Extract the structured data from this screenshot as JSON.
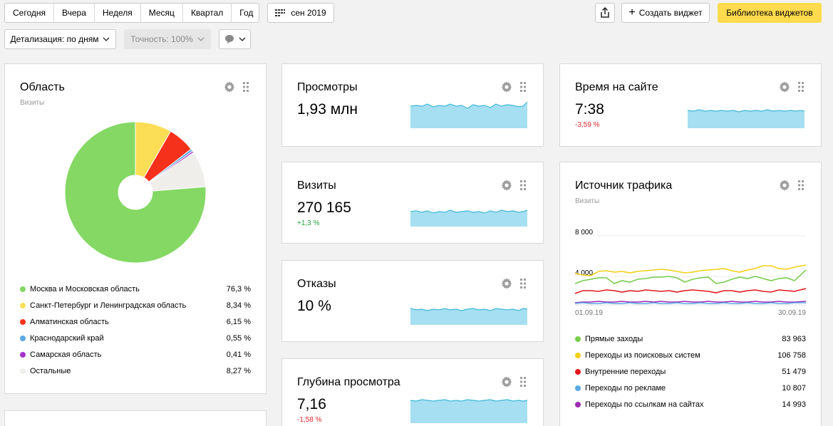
{
  "toolbar": {
    "periods": [
      "Сегодня",
      "Вчера",
      "Неделя",
      "Месяц",
      "Квартал",
      "Год"
    ],
    "date_label": "сен 2019",
    "create_widget": "Создать виджет",
    "library": "Библиотека виджетов",
    "detail": "Детализация: по дням",
    "accuracy": "Точность: 100%"
  },
  "region": {
    "title": "Область",
    "subtitle": "Визиты",
    "items": [
      {
        "label": "Москва и Московская область",
        "value": "76,3 %",
        "share": 76.3,
        "color": "#84d863"
      },
      {
        "label": "Санкт-Петербург и Ленинградская область",
        "value": "8,34 %",
        "share": 8.34,
        "color": "#fbde56"
      },
      {
        "label": "Алматинская область",
        "value": "6,15 %",
        "share": 6.15,
        "color": "#f6311b"
      },
      {
        "label": "Краснодарский край",
        "value": "0,55 %",
        "share": 0.55,
        "color": "#5ba7e3"
      },
      {
        "label": "Самарская область",
        "value": "0,41 %",
        "share": 0.41,
        "color": "#a533c9"
      },
      {
        "label": "Остальные",
        "value": "8,27 %",
        "share": 8.27,
        "color": "#efeeeb"
      }
    ]
  },
  "metrics": {
    "views": {
      "title": "Просмотры",
      "value": "1,93 млн"
    },
    "visits": {
      "title": "Визиты",
      "value": "270 165",
      "delta": "+1,3 %"
    },
    "bounces": {
      "title": "Отказы",
      "value": "10 %"
    },
    "depth": {
      "title": "Глубина просмотра",
      "value": "7,16",
      "delta": "-1,58 %"
    },
    "time": {
      "title": "Время на сайте",
      "value": "7:38",
      "delta": "-3,59 %"
    }
  },
  "traffic": {
    "title": "Источник трафика",
    "subtitle": "Визиты",
    "y_ticks": [
      "8 000",
      "4 000"
    ],
    "x_start": "01.09.19",
    "x_end": "30.09.19",
    "items": [
      {
        "label": "Прямые заходы",
        "value": "83 963",
        "color": "#77cc4c"
      },
      {
        "label": "Переходы из поисковых систем",
        "value": "106 758",
        "color": "#f3cf17"
      },
      {
        "label": "Внутренние переходы",
        "value": "51 479",
        "color": "#e4171c"
      },
      {
        "label": "Переходы по рекламе",
        "value": "10 807",
        "color": "#5aa9e6"
      },
      {
        "label": "Переходы по ссылкам на сайтах",
        "value": "14 993",
        "color": "#a12bb9"
      }
    ]
  },
  "chart_data": {
    "type": "pie",
    "categories": [
      "Москва и Московская область",
      "Санкт-Петербург и Ленинградская область",
      "Алматинская область",
      "Краснодарский край",
      "Самарская область",
      "Остальные"
    ],
    "values": [
      76.3,
      8.34,
      6.15,
      0.55,
      0.41,
      8.27
    ],
    "title": "Область"
  }
}
